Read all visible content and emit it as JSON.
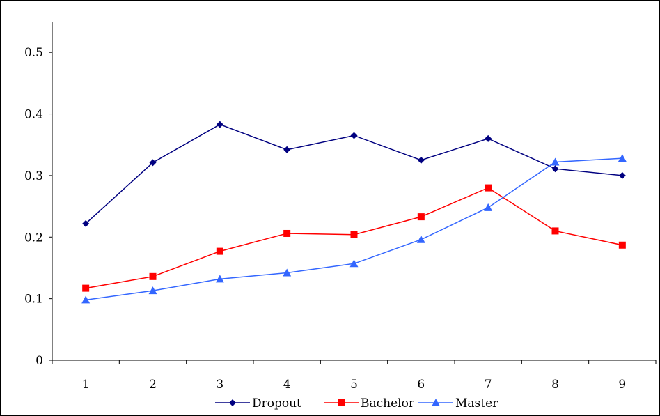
{
  "chart_data": {
    "type": "line",
    "title": "",
    "xlabel": "",
    "ylabel": "",
    "categories": [
      "1",
      "2",
      "3",
      "4",
      "5",
      "6",
      "7",
      "8",
      "9"
    ],
    "ylim": [
      0,
      0.55
    ],
    "yticks": [
      0,
      0.1,
      0.2,
      0.3,
      0.4,
      0.5
    ],
    "ytick_labels": [
      "0",
      "0.1",
      "0.2",
      "0.3",
      "0.4",
      "0.5"
    ],
    "grid": false,
    "legend_position": "bottom",
    "series": [
      {
        "name": "Dropout",
        "color": "#000080",
        "marker": "diamond",
        "values": [
          0.222,
          0.321,
          0.383,
          0.342,
          0.365,
          0.325,
          0.36,
          0.311,
          0.3
        ]
      },
      {
        "name": "Bachelor",
        "color": "#ff0000",
        "marker": "square",
        "values": [
          0.117,
          0.136,
          0.177,
          0.206,
          0.204,
          0.233,
          0.28,
          0.21,
          0.187
        ]
      },
      {
        "name": "Master",
        "color": "#3366ff",
        "marker": "triangle",
        "values": [
          0.098,
          0.113,
          0.132,
          0.142,
          0.157,
          0.196,
          0.248,
          0.322,
          0.328
        ]
      }
    ]
  }
}
